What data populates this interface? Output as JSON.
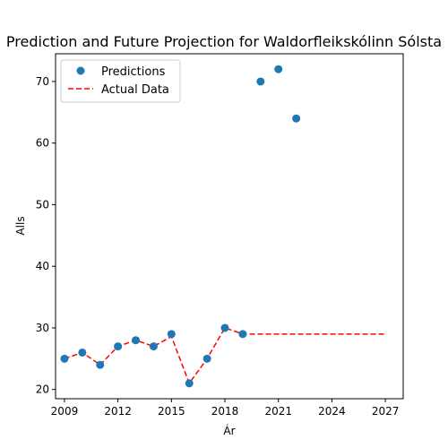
{
  "chart_data": {
    "type": "scatter",
    "title": "Prediction and Future Projection for Waldorfleikskólinn Sólsta",
    "xlabel": "Ár",
    "ylabel": "Alls",
    "xlim": [
      2008.5,
      2028
    ],
    "ylim": [
      18.5,
      74.5
    ],
    "xticks": [
      2009,
      2012,
      2015,
      2018,
      2021,
      2024,
      2027
    ],
    "yticks": [
      20,
      30,
      40,
      50,
      60,
      70
    ],
    "grid": false,
    "legend_position": "top-left",
    "series": [
      {
        "name": "Predictions",
        "kind": "scatter",
        "color": "#1f77b4",
        "x": [
          2009,
          2010,
          2011,
          2012,
          2013,
          2014,
          2015,
          2016,
          2017,
          2018,
          2019,
          2020,
          2021,
          2022
        ],
        "y": [
          25,
          26,
          24,
          27,
          28,
          27,
          29,
          21,
          25,
          30,
          29,
          70,
          72,
          64
        ]
      },
      {
        "name": "Actual Data",
        "kind": "line",
        "style": "dashed",
        "color": "#ff0000",
        "x": [
          2009,
          2010,
          2011,
          2012,
          2013,
          2014,
          2015,
          2016,
          2017,
          2018,
          2019,
          2027
        ],
        "y": [
          25,
          26,
          24,
          27,
          28,
          27,
          28.6,
          21,
          25,
          30,
          29,
          29
        ]
      }
    ]
  }
}
